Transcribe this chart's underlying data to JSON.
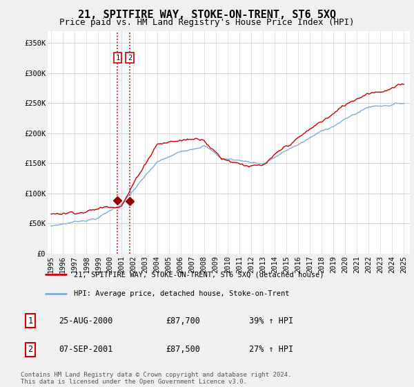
{
  "title": "21, SPITFIRE WAY, STOKE-ON-TRENT, ST6 5XQ",
  "subtitle": "Price paid vs. HM Land Registry's House Price Index (HPI)",
  "ylim": [
    0,
    370000
  ],
  "yticks": [
    0,
    50000,
    100000,
    150000,
    200000,
    250000,
    300000,
    350000
  ],
  "ytick_labels": [
    "£0",
    "£50K",
    "£100K",
    "£150K",
    "£200K",
    "£250K",
    "£300K",
    "£350K"
  ],
  "xlim_start": 1994.7,
  "xlim_end": 2025.5,
  "sale1_date": 2000.65,
  "sale1_price": 87700,
  "sale2_date": 2001.69,
  "sale2_price": 87500,
  "line_color_red": "#cc0000",
  "line_color_blue": "#7aade0",
  "marker_color_red": "#990000",
  "legend_label_red": "21, SPITFIRE WAY, STOKE-ON-TRENT, ST6 5XQ (detached house)",
  "legend_label_blue": "HPI: Average price, detached house, Stoke-on-Trent",
  "table_rows": [
    {
      "num": "1",
      "date": "25-AUG-2000",
      "price": "£87,700",
      "change": "39% ↑ HPI"
    },
    {
      "num": "2",
      "date": "07-SEP-2001",
      "price": "£87,500",
      "change": "27% ↑ HPI"
    }
  ],
  "footnote": "Contains HM Land Registry data © Crown copyright and database right 2024.\nThis data is licensed under the Open Government Licence v3.0.",
  "bg_color": "#f0f0f0",
  "plot_bg_color": "#ffffff",
  "title_fontsize": 11,
  "subtitle_fontsize": 9,
  "tick_fontsize": 7.5
}
